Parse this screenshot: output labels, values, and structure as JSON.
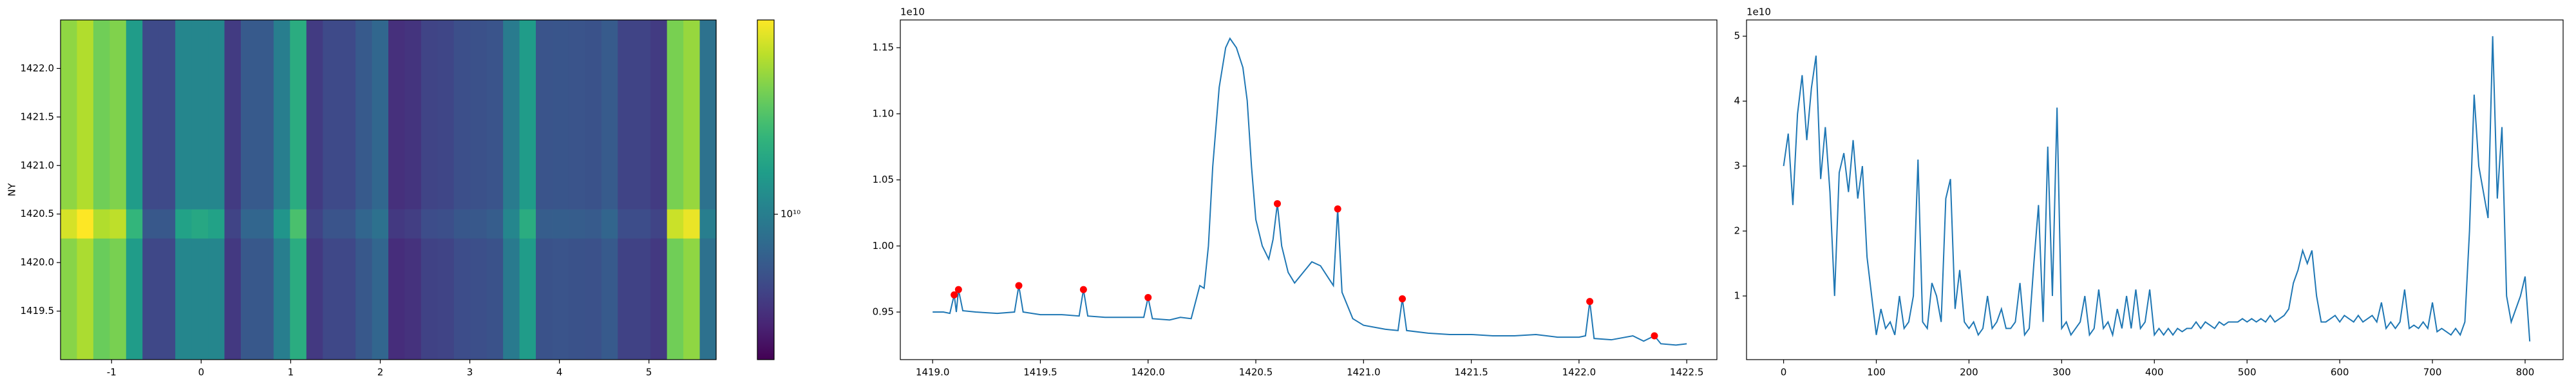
{
  "chart_data": [
    {
      "type": "heatmap",
      "ylabel": "NY",
      "colormap": "viridis",
      "x_edges": [
        -1.57,
        -1.387,
        -1.204,
        -1.021,
        -0.838,
        -0.655,
        -0.472,
        -0.289,
        -0.106,
        0.077,
        0.26,
        0.443,
        0.626,
        0.809,
        0.992,
        1.175,
        1.358,
        1.541,
        1.724,
        1.907,
        2.09,
        2.273,
        2.456,
        2.639,
        2.822,
        3.005,
        3.188,
        3.371,
        3.554,
        3.737,
        3.92,
        4.103,
        4.286,
        4.469,
        4.652,
        4.835,
        5.018,
        5.201,
        5.384,
        5.567,
        5.75
      ],
      "y_edges": [
        1419.0,
        1420.25,
        1420.55,
        1422.5
      ],
      "z": [
        [
          30000000000.0,
          35000000000.0,
          26000000000.0,
          28000000000.0,
          14000000000.0,
          5500000000.0,
          5500000000.0,
          11000000000.0,
          11000000000.0,
          11000000000.0,
          4800000000.0,
          6500000000.0,
          6500000000.0,
          10000000000.0,
          17000000000.0,
          4800000000.0,
          5500000000.0,
          5500000000.0,
          6500000000.0,
          7500000000.0,
          4300000000.0,
          4500000000.0,
          5200000000.0,
          5300000000.0,
          5800000000.0,
          5900000000.0,
          6100000000.0,
          9500000000.0,
          14000000000.0,
          6100000000.0,
          6200000000.0,
          6100000000.0,
          6000000000.0,
          6600000000.0,
          5200000000.0,
          5200000000.0,
          4800000000.0,
          27000000000.0,
          31000000000.0,
          8500000000.0
        ],
        [
          42000000000.0,
          50000000000.0,
          36000000000.0,
          38000000000.0,
          19000000000.0,
          6500000000.0,
          6500000000.0,
          15000000000.0,
          16000000000.0,
          15000000000.0,
          5300000000.0,
          7500000000.0,
          7500000000.0,
          13000000000.0,
          22000000000.0,
          5300000000.0,
          6200000000.0,
          6200000000.0,
          7500000000.0,
          8500000000.0,
          4800000000.0,
          5000000000.0,
          5800000000.0,
          5900000000.0,
          6400000000.0,
          6500000000.0,
          6800000000.0,
          11000000000.0,
          17000000000.0,
          6800000000.0,
          6900000000.0,
          6800000000.0,
          6700000000.0,
          7400000000.0,
          5800000000.0,
          5800000000.0,
          5300000000.0,
          40000000000.0,
          46000000000.0,
          10000000000.0
        ],
        [
          31000000000.0,
          36000000000.0,
          27000000000.0,
          29000000000.0,
          14000000000.0,
          5600000000.0,
          5600000000.0,
          11000000000.0,
          11000000000.0,
          11000000000.0,
          4900000000.0,
          6600000000.0,
          6600000000.0,
          10000000000.0,
          17000000000.0,
          4900000000.0,
          5600000000.0,
          5600000000.0,
          6600000000.0,
          7600000000.0,
          4400000000.0,
          4600000000.0,
          5300000000.0,
          5400000000.0,
          5900000000.0,
          6000000000.0,
          6200000000.0,
          9600000000.0,
          14000000000.0,
          6200000000.0,
          6300000000.0,
          6200000000.0,
          6100000000.0,
          6700000000.0,
          5300000000.0,
          5300000000.0,
          4900000000.0,
          28000000000.0,
          32000000000.0,
          8600000000.0
        ]
      ],
      "xlim": [
        -1.57,
        5.75
      ],
      "ylim": [
        1419.0,
        1422.5
      ],
      "xticks": [
        -1,
        0,
        1,
        2,
        3,
        4,
        5
      ],
      "yticks": [
        1419.5,
        {
          "value": 1420,
          "label": "1420.0"
        },
        1420.5,
        {
          "value": 1421,
          "label": "1421.0"
        },
        1421.5,
        {
          "value": 1422,
          "label": "1422.0"
        }
      ],
      "colorbar": {
        "scale": "log",
        "lim": [
          3000000000.0,
          50000000000.0
        ],
        "ticks": [
          {
            "value": 10000000000.0,
            "label": "10¹⁰"
          }
        ]
      }
    },
    {
      "type": "line",
      "offset_label": "1e10",
      "color": "#1f77b4",
      "x": [
        1419.0,
        1419.05,
        1419.08,
        1419.1,
        1419.11,
        1419.12,
        1419.14,
        1419.2,
        1419.3,
        1419.38,
        1419.4,
        1419.42,
        1419.5,
        1419.6,
        1419.68,
        1419.7,
        1419.72,
        1419.8,
        1419.9,
        1419.98,
        1420.0,
        1420.02,
        1420.1,
        1420.15,
        1420.2,
        1420.24,
        1420.26,
        1420.28,
        1420.3,
        1420.33,
        1420.36,
        1420.38,
        1420.41,
        1420.44,
        1420.46,
        1420.48,
        1420.5,
        1420.53,
        1420.56,
        1420.58,
        1420.6,
        1420.62,
        1420.65,
        1420.68,
        1420.72,
        1420.76,
        1420.8,
        1420.84,
        1420.86,
        1420.88,
        1420.9,
        1420.95,
        1421.0,
        1421.1,
        1421.16,
        1421.18,
        1421.2,
        1421.3,
        1421.4,
        1421.5,
        1421.6,
        1421.7,
        1421.8,
        1421.9,
        1422.0,
        1422.03,
        1422.05,
        1422.07,
        1422.15,
        1422.25,
        1422.3,
        1422.35,
        1422.38,
        1422.45,
        1422.5
      ],
      "values": [
        0.95,
        0.95,
        0.949,
        0.963,
        0.95,
        0.967,
        0.951,
        0.95,
        0.949,
        0.95,
        0.97,
        0.95,
        0.948,
        0.948,
        0.947,
        0.967,
        0.947,
        0.946,
        0.946,
        0.946,
        0.961,
        0.945,
        0.944,
        0.946,
        0.945,
        0.97,
        0.968,
        1.0,
        1.06,
        1.12,
        1.15,
        1.157,
        1.15,
        1.135,
        1.11,
        1.06,
        1.02,
        1.0,
        0.99,
        1.005,
        1.032,
        1.0,
        0.98,
        0.972,
        0.98,
        0.988,
        0.985,
        0.975,
        0.97,
        1.028,
        0.965,
        0.945,
        0.94,
        0.937,
        0.936,
        0.96,
        0.936,
        0.934,
        0.933,
        0.933,
        0.932,
        0.932,
        0.933,
        0.931,
        0.931,
        0.932,
        0.958,
        0.93,
        0.929,
        0.932,
        0.928,
        0.932,
        0.926,
        0.925,
        0.926
      ],
      "peaks": {
        "color": "red",
        "x": [
          1419.1,
          1419.12,
          1419.4,
          1419.7,
          1420.0,
          1420.6,
          1420.88,
          1421.18,
          1422.05,
          1422.35
        ],
        "values": [
          0.963,
          0.967,
          0.97,
          0.967,
          0.961,
          1.032,
          1.028,
          0.96,
          0.958,
          0.932
        ]
      },
      "xlim": [
        1418.85,
        1422.64
      ],
      "ylim": [
        0.914,
        1.171
      ],
      "xticks": [
        {
          "value": 1419,
          "label": "1419.0"
        },
        1419.5,
        {
          "value": 1420,
          "label": "1420.0"
        },
        1420.5,
        {
          "value": 1421,
          "label": "1421.0"
        },
        1421.5,
        {
          "value": 1422,
          "label": "1422.0"
        },
        1422.5
      ],
      "yticks": [
        0.95,
        {
          "value": 1,
          "label": "1.00"
        },
        1.05,
        {
          "value": 1.1,
          "label": "1.10"
        },
        1.15
      ]
    },
    {
      "type": "line",
      "offset_label": "1e10",
      "color": "#1f77b4",
      "x": [
        0,
        5,
        10,
        15,
        20,
        25,
        30,
        35,
        40,
        45,
        50,
        55,
        60,
        65,
        70,
        75,
        80,
        85,
        90,
        95,
        100,
        105,
        110,
        115,
        120,
        125,
        130,
        135,
        140,
        145,
        150,
        155,
        160,
        165,
        170,
        175,
        180,
        185,
        190,
        195,
        200,
        205,
        210,
        215,
        220,
        225,
        230,
        235,
        240,
        245,
        250,
        255,
        260,
        265,
        270,
        275,
        280,
        285,
        290,
        295,
        300,
        305,
        310,
        315,
        320,
        325,
        330,
        335,
        340,
        345,
        350,
        355,
        360,
        365,
        370,
        375,
        380,
        385,
        390,
        395,
        400,
        405,
        410,
        415,
        420,
        425,
        430,
        435,
        440,
        445,
        450,
        455,
        460,
        465,
        470,
        475,
        480,
        485,
        490,
        495,
        500,
        505,
        510,
        515,
        520,
        525,
        530,
        535,
        540,
        545,
        550,
        555,
        560,
        565,
        570,
        575,
        580,
        585,
        590,
        595,
        600,
        605,
        610,
        615,
        620,
        625,
        630,
        635,
        640,
        645,
        650,
        655,
        660,
        665,
        670,
        675,
        680,
        685,
        690,
        695,
        700,
        705,
        710,
        715,
        720,
        725,
        730,
        735,
        740,
        745,
        750,
        755,
        760,
        765,
        770,
        775,
        780,
        785,
        790,
        795,
        800,
        805
      ],
      "values": [
        3.0,
        3.5,
        2.4,
        3.8,
        4.4,
        3.4,
        4.2,
        4.7,
        2.8,
        3.6,
        2.6,
        1.0,
        2.9,
        3.2,
        2.6,
        3.4,
        2.5,
        3.0,
        1.6,
        1.0,
        0.4,
        0.8,
        0.5,
        0.6,
        0.4,
        1.0,
        0.5,
        0.6,
        1.0,
        3.1,
        0.6,
        0.5,
        1.2,
        1.0,
        0.6,
        2.5,
        2.8,
        0.8,
        1.4,
        0.6,
        0.5,
        0.6,
        0.4,
        0.5,
        1.0,
        0.5,
        0.6,
        0.8,
        0.5,
        0.5,
        0.6,
        1.2,
        0.4,
        0.5,
        1.5,
        2.4,
        0.6,
        3.3,
        1.0,
        3.9,
        0.5,
        0.6,
        0.4,
        0.5,
        0.6,
        1.0,
        0.4,
        0.5,
        1.1,
        0.5,
        0.6,
        0.4,
        0.8,
        0.5,
        1.0,
        0.5,
        1.1,
        0.5,
        0.6,
        1.1,
        0.4,
        0.5,
        0.4,
        0.5,
        0.4,
        0.5,
        0.45,
        0.5,
        0.5,
        0.6,
        0.5,
        0.6,
        0.55,
        0.5,
        0.6,
        0.55,
        0.6,
        0.6,
        0.6,
        0.65,
        0.6,
        0.65,
        0.6,
        0.65,
        0.6,
        0.7,
        0.6,
        0.65,
        0.7,
        0.8,
        1.2,
        1.4,
        1.7,
        1.5,
        1.7,
        1.0,
        0.6,
        0.6,
        0.65,
        0.7,
        0.6,
        0.7,
        0.65,
        0.6,
        0.7,
        0.6,
        0.65,
        0.7,
        0.6,
        0.9,
        0.5,
        0.6,
        0.5,
        0.6,
        1.1,
        0.5,
        0.55,
        0.5,
        0.6,
        0.5,
        0.9,
        0.45,
        0.5,
        0.45,
        0.4,
        0.5,
        0.4,
        0.6,
        2.0,
        4.1,
        3.0,
        2.6,
        2.2,
        5.0,
        2.5,
        3.6,
        1.0,
        0.6,
        0.8,
        1.0,
        1.3,
        0.3
      ],
      "xlim": [
        -40,
        841
      ],
      "ylim": [
        0.02,
        5.25
      ],
      "xticks": [
        0,
        100,
        200,
        300,
        400,
        500,
        600,
        700,
        800
      ],
      "yticks": [
        1,
        2,
        3,
        4,
        5
      ]
    }
  ]
}
